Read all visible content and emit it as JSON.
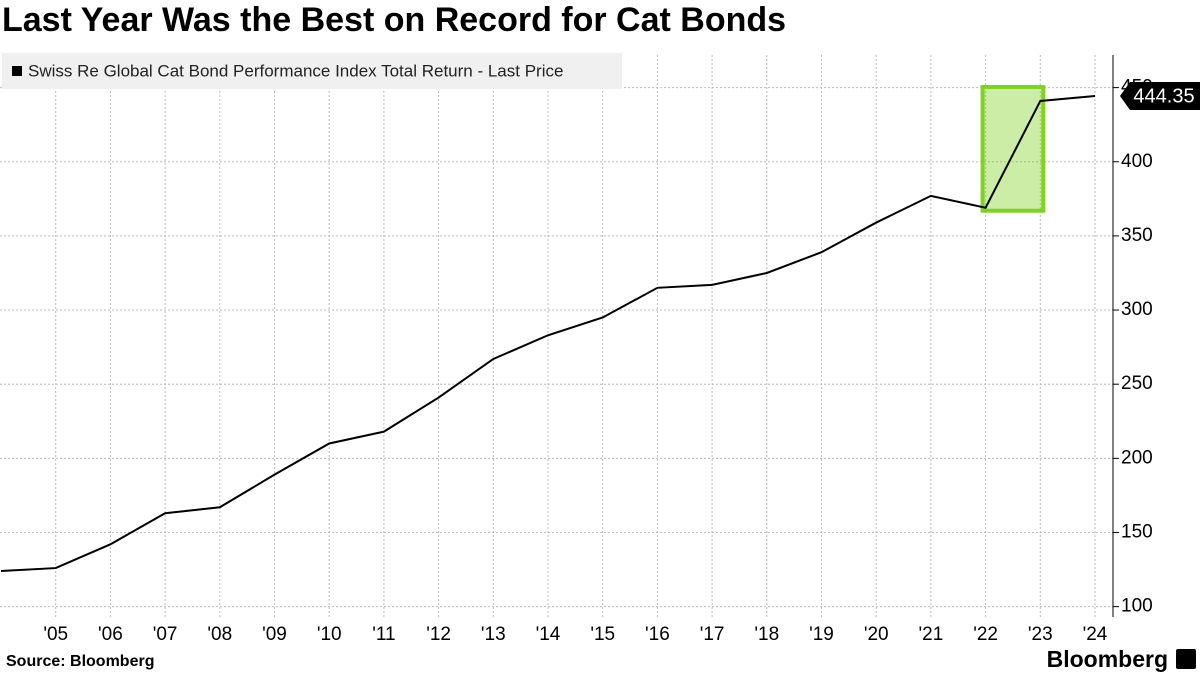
{
  "chart_data": {
    "type": "line",
    "title": "Last Year Was the Best on Record for Cat Bonds",
    "source": "Source: Bloomberg",
    "brand": "Bloomberg",
    "categories": [
      null,
      "'05",
      "'06",
      "'07",
      "'08",
      "'09",
      "'10",
      "'11",
      "'12",
      "'13",
      "'14",
      "'15",
      "'16",
      "'17",
      "'18",
      "'19",
      "'20",
      "'21",
      "'22",
      "'23",
      "'24"
    ],
    "series": [
      {
        "name": "Swiss Re Global Cat Bond Performance Index Total Return - Last Price",
        "color": "#000000",
        "values": [
          124,
          126,
          142,
          163,
          167,
          189,
          210,
          218,
          241,
          267,
          283,
          295,
          315,
          317,
          325,
          339,
          359,
          377,
          369,
          441,
          444.35
        ]
      }
    ],
    "ylim": [
      93,
      472
    ],
    "yticks": [
      100,
      150,
      200,
      250,
      300,
      350,
      400,
      450
    ],
    "grid": true,
    "highlight_categories": [
      "'22",
      "'23"
    ],
    "highlight_color": "#7ed321"
  }
}
